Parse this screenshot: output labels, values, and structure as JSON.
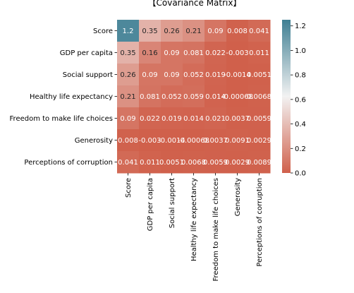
{
  "chart_data": {
    "type": "heatmap",
    "title": "【Covariance Matrix】",
    "variables": [
      "Score",
      "GDP per capita",
      "Social support",
      "Healthy life expectancy",
      "Freedom to make life choices",
      "Generosity",
      "Perceptions of corruption"
    ],
    "values": [
      [
        1.2,
        0.35,
        0.26,
        0.21,
        0.09,
        0.008,
        0.041
      ],
      [
        0.35,
        0.16,
        0.09,
        0.081,
        0.022,
        -0.003,
        0.011
      ],
      [
        0.26,
        0.09,
        0.09,
        0.052,
        0.019,
        -0.0014,
        0.0051
      ],
      [
        0.21,
        0.081,
        0.052,
        0.059,
        0.014,
        -0.00068,
        0.0068
      ],
      [
        0.09,
        0.022,
        0.019,
        0.014,
        0.021,
        0.0037,
        0.0059
      ],
      [
        0.008,
        -0.003,
        -0.0014,
        -0.00068,
        0.0037,
        0.0091,
        0.0029
      ],
      [
        0.041,
        0.011,
        0.0051,
        0.0068,
        0.0059,
        0.0029,
        0.0089
      ]
    ],
    "cell_labels": [
      [
        "1.2",
        "0.35",
        "0.26",
        "0.21",
        "0.09",
        "0.008",
        "0.041"
      ],
      [
        "0.35",
        "0.16",
        "0.09",
        "0.081",
        "0.022",
        "-0.003",
        "0.011"
      ],
      [
        "0.26",
        "0.09",
        "0.09",
        "0.052",
        "0.019",
        "-0.0014",
        "0.0051"
      ],
      [
        "0.21",
        "0.081",
        "0.052",
        "0.059",
        "0.014",
        "-0.00068",
        "0.0068"
      ],
      [
        "0.09",
        "0.022",
        "0.019",
        "0.014",
        "0.021",
        "0.0037",
        "0.0059"
      ],
      [
        "0.008",
        "-0.003",
        "-0.0014",
        "-0.00068",
        "0.0037",
        "0.0091",
        "0.0029"
      ],
      [
        "0.041",
        "0.011",
        "0.0051",
        "0.0068",
        "0.0059",
        "0.0029",
        "0.0089"
      ]
    ],
    "colorbar": {
      "min": 0.0,
      "max": 1.25,
      "ticks": [
        0.0,
        0.2,
        0.4,
        0.6,
        0.8,
        1.0,
        1.2
      ],
      "tick_labels": [
        "0.0",
        "0.2",
        "0.4",
        "0.6",
        "0.8",
        "1.0",
        "1.2"
      ]
    },
    "colors": {
      "low": "#d0604b",
      "mid": "#f2f2f2",
      "high": "#3f7f93"
    }
  }
}
